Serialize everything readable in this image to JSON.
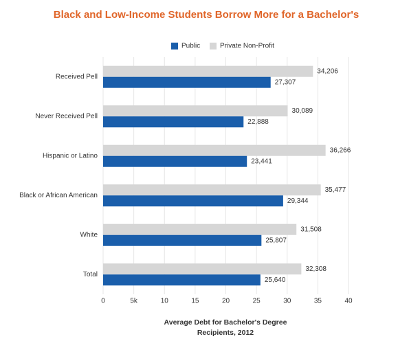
{
  "chart_data": {
    "type": "hbar",
    "title": "Black and Low-Income Students Borrow More for a Bachelor's",
    "categories": [
      "Received Pell",
      "Never Received Pell",
      "Hispanic or Latino",
      "Black or African American",
      "White",
      "Total"
    ],
    "series": [
      {
        "name": "Public",
        "color": "#1a5eab",
        "values": [
          27.307,
          22.888,
          23.441,
          29.344,
          25.807,
          25.64
        ],
        "value_labels": [
          "27,307",
          "22,888",
          "23,441",
          "29,344",
          "25,807",
          "25,640"
        ]
      },
      {
        "name": "Private Non-Profit",
        "color": "#d6d6d6",
        "values": [
          34.206,
          30.089,
          36.266,
          35.477,
          31.508,
          32.308
        ],
        "value_labels": [
          "34,206",
          "30,089",
          "36,266",
          "35,477",
          "31,508",
          "32,308"
        ]
      }
    ],
    "xlim": [
      0,
      40
    ],
    "xticks": [
      0,
      {
        "value": 5,
        "label": "5k"
      },
      10,
      15,
      20,
      25,
      30,
      35,
      40
    ],
    "x_label": [
      "Average Debt for Bachelor's Degree",
      "Recipients, 2012"
    ],
    "grid": true
  }
}
